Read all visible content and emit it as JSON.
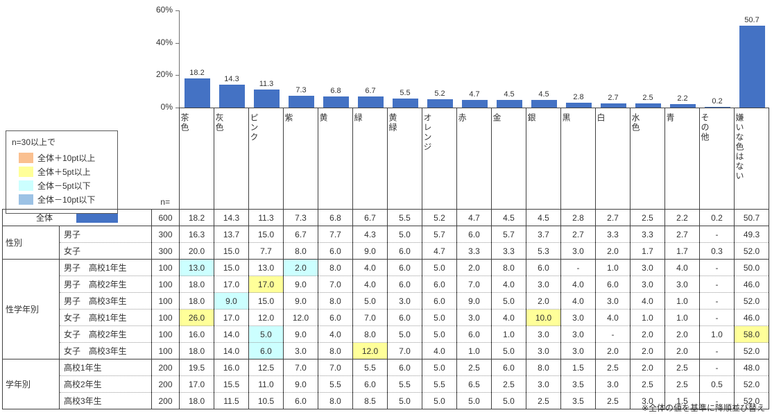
{
  "chart_data": {
    "type": "bar",
    "title": "",
    "categories": [
      "茶色",
      "灰色",
      "ピンク",
      "紫",
      "黄",
      "緑",
      "黄緑",
      "オレンジ",
      "赤",
      "金",
      "銀",
      "黒",
      "白",
      "水色",
      "青",
      "その他",
      "嫌いな色はない"
    ],
    "values": [
      18.2,
      14.3,
      11.3,
      7.3,
      6.8,
      6.7,
      5.5,
      5.2,
      4.7,
      4.5,
      4.5,
      2.8,
      2.7,
      2.5,
      2.2,
      0.2,
      50.7
    ],
    "ylim": [
      0,
      60
    ],
    "yticks": [
      {
        "label": "60%",
        "value": 60
      },
      {
        "label": "40%",
        "value": 40
      },
      {
        "label": "20%",
        "value": 20
      },
      {
        "label": "0%",
        "value": 0
      }
    ],
    "bar_color": "#4472C4",
    "legend_position": "left",
    "grid": false
  },
  "legend": {
    "title": "n=30以上で",
    "items": [
      {
        "label": "全体＋10pt以上",
        "color": "#FAC090"
      },
      {
        "label": "全体＋5pt以上",
        "color": "#FFFF99"
      },
      {
        "label": "全体－5pt以下",
        "color": "#CCFFFF"
      },
      {
        "label": "全体－10pt以下",
        "color": "#9CC2E5"
      }
    ]
  },
  "table": {
    "n_header": "n=",
    "total_swatch_color": "#4472C4",
    "groups": [
      {
        "name": "",
        "rows": [
          {
            "label": "全体",
            "n": "600",
            "total": true,
            "values": [
              "18.2",
              "14.3",
              "11.3",
              "7.3",
              "6.8",
              "6.7",
              "5.5",
              "5.2",
              "4.7",
              "4.5",
              "4.5",
              "2.8",
              "2.7",
              "2.5",
              "2.2",
              "0.2",
              "50.7"
            ],
            "hl": {}
          }
        ]
      },
      {
        "name": "性別",
        "rows": [
          {
            "label": "男子",
            "n": "300",
            "values": [
              "16.3",
              "13.7",
              "15.0",
              "6.7",
              "7.7",
              "4.3",
              "5.0",
              "5.7",
              "6.0",
              "5.7",
              "3.7",
              "2.7",
              "3.3",
              "3.3",
              "2.7",
              "-",
              "49.3"
            ],
            "hl": {}
          },
          {
            "label": "女子",
            "n": "300",
            "values": [
              "20.0",
              "15.0",
              "7.7",
              "8.0",
              "6.0",
              "9.0",
              "6.0",
              "4.7",
              "3.3",
              "3.3",
              "5.3",
              "3.0",
              "2.0",
              "1.7",
              "1.7",
              "0.3",
              "52.0"
            ],
            "hl": {}
          }
        ]
      },
      {
        "name": "性学年別",
        "rows": [
          {
            "label": "男子　高校1年生",
            "n": "100",
            "values": [
              "13.0",
              "15.0",
              "13.0",
              "2.0",
              "8.0",
              "4.0",
              "6.0",
              "5.0",
              "2.0",
              "8.0",
              "6.0",
              "-",
              "1.0",
              "3.0",
              "4.0",
              "-",
              "50.0"
            ],
            "hl": {
              "0": "c",
              "3": "c"
            }
          },
          {
            "label": "男子　高校2年生",
            "n": "100",
            "values": [
              "18.0",
              "17.0",
              "17.0",
              "9.0",
              "7.0",
              "4.0",
              "6.0",
              "6.0",
              "7.0",
              "4.0",
              "3.0",
              "4.0",
              "6.0",
              "3.0",
              "3.0",
              "-",
              "46.0"
            ],
            "hl": {
              "2": "y"
            }
          },
          {
            "label": "男子　高校3年生",
            "n": "100",
            "values": [
              "18.0",
              "9.0",
              "15.0",
              "9.0",
              "8.0",
              "5.0",
              "3.0",
              "6.0",
              "9.0",
              "5.0",
              "2.0",
              "4.0",
              "3.0",
              "4.0",
              "1.0",
              "-",
              "52.0"
            ],
            "hl": {
              "1": "c"
            }
          },
          {
            "label": "女子　高校1年生",
            "n": "100",
            "values": [
              "26.0",
              "17.0",
              "12.0",
              "12.0",
              "6.0",
              "7.0",
              "6.0",
              "5.0",
              "3.0",
              "4.0",
              "10.0",
              "3.0",
              "4.0",
              "1.0",
              "1.0",
              "-",
              "46.0"
            ],
            "hl": {
              "0": "y",
              "10": "y"
            }
          },
          {
            "label": "女子　高校2年生",
            "n": "100",
            "values": [
              "16.0",
              "14.0",
              "5.0",
              "9.0",
              "4.0",
              "8.0",
              "5.0",
              "5.0",
              "6.0",
              "1.0",
              "3.0",
              "3.0",
              "-",
              "2.0",
              "2.0",
              "1.0",
              "58.0"
            ],
            "hl": {
              "2": "c",
              "16": "y"
            }
          },
          {
            "label": "女子　高校3年生",
            "n": "100",
            "values": [
              "18.0",
              "14.0",
              "6.0",
              "3.0",
              "8.0",
              "12.0",
              "7.0",
              "4.0",
              "1.0",
              "5.0",
              "3.0",
              "3.0",
              "2.0",
              "2.0",
              "2.0",
              "-",
              "52.0"
            ],
            "hl": {
              "2": "c",
              "5": "y"
            }
          }
        ]
      },
      {
        "name": "学年別",
        "rows": [
          {
            "label": "高校1年生",
            "n": "200",
            "values": [
              "19.5",
              "16.0",
              "12.5",
              "7.0",
              "7.0",
              "5.5",
              "6.0",
              "5.0",
              "2.5",
              "6.0",
              "8.0",
              "1.5",
              "2.5",
              "2.0",
              "2.5",
              "-",
              "48.0"
            ],
            "hl": {}
          },
          {
            "label": "高校2年生",
            "n": "200",
            "values": [
              "17.0",
              "15.5",
              "11.0",
              "9.0",
              "5.5",
              "6.0",
              "5.5",
              "5.5",
              "6.5",
              "2.5",
              "3.0",
              "3.5",
              "3.0",
              "2.5",
              "2.5",
              "0.5",
              "52.0"
            ],
            "hl": {}
          },
          {
            "label": "高校3年生",
            "n": "200",
            "values": [
              "18.0",
              "11.5",
              "10.5",
              "6.0",
              "8.0",
              "8.5",
              "5.0",
              "5.0",
              "5.0",
              "5.0",
              "2.5",
              "3.5",
              "2.5",
              "3.0",
              "1.5",
              "-",
              "52.0"
            ],
            "hl": {}
          }
        ]
      }
    ]
  },
  "footnote": "※全体の値を基準に降順並び替え"
}
